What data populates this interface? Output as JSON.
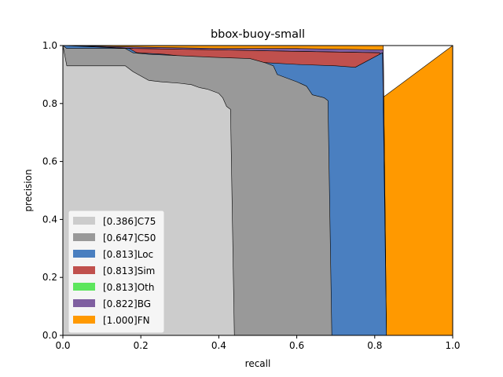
{
  "chart_data": {
    "type": "area",
    "title": "bbox-buoy-small",
    "xlabel": "recall",
    "ylabel": "precision",
    "xlim": [
      0,
      1
    ],
    "ylim": [
      0,
      1
    ],
    "xticks": [
      "0.0",
      "0.2",
      "0.4",
      "0.6",
      "0.8",
      "1.0"
    ],
    "yticks": [
      "0.0",
      "0.2",
      "0.4",
      "0.6",
      "0.8",
      "1.0"
    ],
    "grid": false,
    "legend_position": "lower-left",
    "series": [
      {
        "name": "[1.000]FN",
        "color": "#ff9900",
        "points": [
          [
            0.0,
            1.0
          ],
          [
            0.822,
            1.0
          ],
          [
            0.822,
            0.97
          ],
          [
            0.83,
            0.0
          ],
          [
            1.0,
            0.0
          ],
          [
            1.0,
            1.0
          ]
        ]
      },
      {
        "name": "[0.822]BG",
        "color": "#7f5fa0",
        "points": [
          [
            0.0,
            1.0
          ],
          [
            0.18,
            0.995
          ],
          [
            0.4,
            0.99
          ],
          [
            0.6,
            0.99
          ],
          [
            0.822,
            0.985
          ],
          [
            0.822,
            0.975
          ],
          [
            0.83,
            0.0
          ]
        ]
      },
      {
        "name": "[0.813]Oth",
        "color": "#5de65d",
        "points": [
          [
            0.0,
            1.0
          ],
          [
            0.18,
            0.99
          ],
          [
            0.4,
            0.985
          ],
          [
            0.6,
            0.98
          ],
          [
            0.813,
            0.975
          ],
          [
            0.823,
            0.0
          ]
        ]
      },
      {
        "name": "[0.813]Sim",
        "color": "#c0504d",
        "points": [
          [
            0.0,
            1.0
          ],
          [
            0.18,
            0.99
          ],
          [
            0.4,
            0.985
          ],
          [
            0.6,
            0.98
          ],
          [
            0.813,
            0.975
          ],
          [
            0.822,
            0.0
          ]
        ]
      },
      {
        "name": "[0.813]Loc",
        "color": "#4a7fc0",
        "points": [
          [
            0.0,
            1.0
          ],
          [
            0.17,
            0.99
          ],
          [
            0.19,
            0.975
          ],
          [
            0.26,
            0.97
          ],
          [
            0.33,
            0.96
          ],
          [
            0.43,
            0.955
          ],
          [
            0.48,
            0.945
          ],
          [
            0.53,
            0.94
          ],
          [
            0.6,
            0.935
          ],
          [
            0.7,
            0.93
          ],
          [
            0.75,
            0.925
          ],
          [
            0.82,
            0.975
          ],
          [
            0.83,
            0.0
          ]
        ]
      },
      {
        "name": "[0.647]C50",
        "color": "#999999",
        "points": [
          [
            0.0,
            1.0
          ],
          [
            0.01,
            0.99
          ],
          [
            0.16,
            0.99
          ],
          [
            0.18,
            0.975
          ],
          [
            0.22,
            0.97
          ],
          [
            0.3,
            0.965
          ],
          [
            0.38,
            0.96
          ],
          [
            0.48,
            0.955
          ],
          [
            0.52,
            0.94
          ],
          [
            0.54,
            0.93
          ],
          [
            0.55,
            0.9
          ],
          [
            0.6,
            0.875
          ],
          [
            0.625,
            0.86
          ],
          [
            0.64,
            0.83
          ],
          [
            0.67,
            0.82
          ],
          [
            0.68,
            0.81
          ],
          [
            0.69,
            0.0
          ]
        ]
      },
      {
        "name": "[0.386]C75",
        "color": "#cccccc",
        "points": [
          [
            0.0,
            1.0
          ],
          [
            0.01,
            0.93
          ],
          [
            0.16,
            0.93
          ],
          [
            0.18,
            0.91
          ],
          [
            0.2,
            0.895
          ],
          [
            0.22,
            0.88
          ],
          [
            0.25,
            0.875
          ],
          [
            0.3,
            0.87
          ],
          [
            0.33,
            0.865
          ],
          [
            0.35,
            0.855
          ],
          [
            0.37,
            0.85
          ],
          [
            0.39,
            0.84
          ],
          [
            0.4,
            0.835
          ],
          [
            0.41,
            0.82
          ],
          [
            0.42,
            0.79
          ],
          [
            0.43,
            0.78
          ],
          [
            0.44,
            0.0
          ]
        ]
      }
    ],
    "legend": [
      {
        "label": "[0.386]C75",
        "color": "#cccccc"
      },
      {
        "label": "[0.647]C50",
        "color": "#999999"
      },
      {
        "label": "[0.813]Loc",
        "color": "#4a7fc0"
      },
      {
        "label": "[0.813]Sim",
        "color": "#c0504d"
      },
      {
        "label": "[0.813]Oth",
        "color": "#5de65d"
      },
      {
        "label": "[0.822]BG",
        "color": "#7f5fa0"
      },
      {
        "label": "[1.000]FN",
        "color": "#ff9900"
      }
    ]
  }
}
